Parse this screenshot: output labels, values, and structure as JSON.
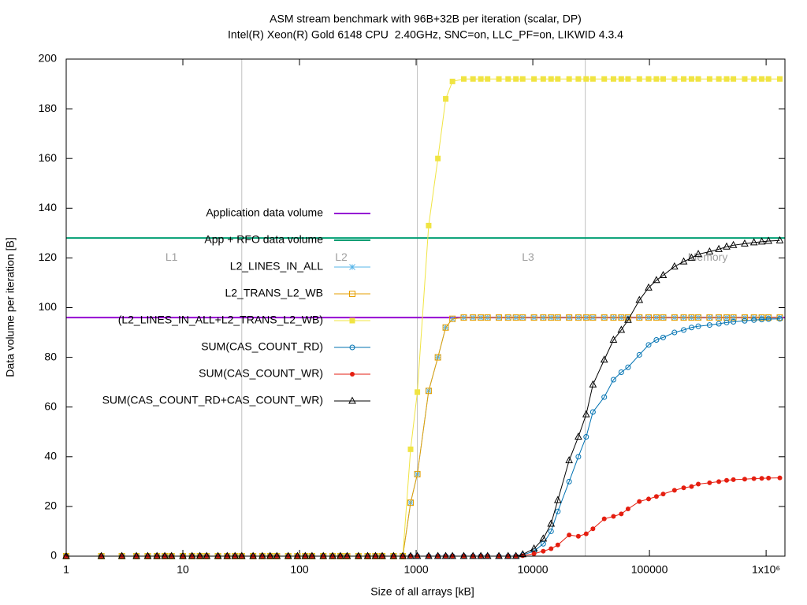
{
  "chart_data": {
    "type": "line",
    "title": "ASM stream benchmark with 96B+32B per iteration (scalar, DP)",
    "subtitle": "Intel(R) Xeon(R) Gold 6148 CPU  2.40GHz, SNC=on, LLC_PF=on, LIKWID 4.3.4",
    "xlabel": "Size of all arrays [kB]",
    "ylabel": "Data volume per iteration [B]",
    "log_x": true,
    "xlim": [
      1,
      1450000
    ],
    "ylim": [
      0,
      200
    ],
    "xticks": [
      1,
      10,
      100,
      1000,
      10000,
      100000,
      {
        "value": 1000000,
        "label": "1x10⁶"
      }
    ],
    "yticks": [
      0,
      20,
      40,
      60,
      80,
      100,
      120,
      140,
      160,
      180,
      200
    ],
    "cache_boundaries": [
      32,
      1024,
      28160
    ],
    "annotations": [
      {
        "text": "L1",
        "x": 8,
        "y": 120
      },
      {
        "text": "L2",
        "x": 228,
        "y": 120
      },
      {
        "text": "L3",
        "x": 9100,
        "y": 120
      },
      {
        "text": "Memory",
        "x": 316000,
        "y": 120
      }
    ],
    "reference_lines": [
      {
        "name": "Application data volume",
        "color": "#9400d3",
        "value": 96
      },
      {
        "name": "App + RFO data volume",
        "color": "#009e73",
        "value": 128
      }
    ],
    "x": [
      1,
      2,
      3,
      4,
      5,
      6,
      7,
      8,
      10,
      12,
      14,
      16,
      20,
      24,
      28,
      32,
      40,
      48,
      56,
      64,
      80,
      96,
      112,
      128,
      160,
      192,
      224,
      256,
      320,
      384,
      448,
      512,
      640,
      768,
      896,
      1024,
      1280,
      1536,
      1792,
      2048,
      2560,
      3072,
      3584,
      4096,
      5120,
      6144,
      7168,
      8192,
      10240,
      12288,
      14336,
      16384,
      20480,
      24576,
      28672,
      32768,
      40960,
      49152,
      57344,
      65536,
      81920,
      98304,
      114688,
      131072,
      163840,
      196608,
      229376,
      262144,
      327680,
      393216,
      458752,
      524288,
      655360,
      786432,
      917504,
      1048576,
      1310720
    ],
    "series": [
      {
        "name": "L2_LINES_IN_ALL",
        "color": "#56b4e9",
        "marker": "asterisk",
        "values": [
          0,
          0,
          0,
          0,
          0,
          0,
          0,
          0,
          0,
          0,
          0,
          0,
          0,
          0,
          0,
          0,
          0,
          0,
          0,
          0,
          0,
          0,
          0,
          0,
          0,
          0,
          0,
          0,
          0,
          0,
          0,
          0,
          0,
          0,
          21.5,
          33,
          66.5,
          80,
          92,
          95.5,
          96,
          96,
          96,
          96,
          96,
          96,
          96,
          96,
          96,
          96,
          96,
          96,
          96,
          96,
          96,
          96,
          96,
          96,
          96,
          96,
          96,
          96,
          96,
          96,
          96,
          96,
          96,
          96,
          96,
          96,
          96,
          96,
          96,
          96,
          96,
          96,
          96
        ]
      },
      {
        "name": "L2_TRANS_L2_WB",
        "color": "#e69f00",
        "marker": "square-open",
        "values": [
          0,
          0,
          0,
          0,
          0,
          0,
          0,
          0,
          0,
          0,
          0,
          0,
          0,
          0,
          0,
          0,
          0,
          0,
          0,
          0,
          0,
          0,
          0,
          0,
          0,
          0,
          0,
          0,
          0,
          0,
          0,
          0,
          0,
          0,
          21.5,
          33,
          66.5,
          80,
          92,
          95.5,
          96,
          96,
          96,
          96,
          96,
          96,
          96,
          96,
          96,
          96,
          96,
          96,
          96,
          96,
          96,
          96,
          96,
          96,
          96,
          96,
          96,
          96,
          96,
          96,
          96,
          96,
          96,
          96,
          96,
          96,
          96,
          96,
          96,
          96,
          96,
          96,
          96
        ]
      },
      {
        "name": "(L2_LINES_IN_ALL+L2_TRANS_L2_WB)",
        "color": "#f0e442",
        "marker": "square",
        "values": [
          0,
          0,
          0,
          0,
          0,
          0,
          0,
          0,
          0,
          0,
          0,
          0,
          0,
          0,
          0,
          0,
          0,
          0,
          0,
          0,
          0,
          0,
          0,
          0,
          0,
          0,
          0,
          0,
          0,
          0,
          0,
          0,
          0,
          0,
          43,
          66,
          133,
          160,
          184,
          191,
          192,
          192,
          192,
          192,
          192,
          192,
          192,
          192,
          192,
          192,
          192,
          192,
          192,
          192,
          192,
          192,
          192,
          192,
          192,
          192,
          192,
          192,
          192,
          192,
          192,
          192,
          192,
          192,
          192,
          192,
          192,
          192,
          192,
          192,
          192,
          192,
          192
        ]
      },
      {
        "name": "SUM(CAS_COUNT_RD)",
        "color": "#0072b2",
        "marker": "circle-open",
        "values": [
          0,
          0,
          0,
          0,
          0,
          0,
          0,
          0,
          0,
          0,
          0,
          0,
          0,
          0,
          0,
          0,
          0,
          0,
          0,
          0,
          0,
          0,
          0,
          0,
          0,
          0,
          0,
          0,
          0,
          0,
          0,
          0,
          0,
          0,
          0,
          0,
          0,
          0,
          0,
          0,
          0,
          0,
          0,
          0,
          0,
          0,
          0,
          0.5,
          2,
          5,
          10,
          18,
          30,
          40,
          48,
          58,
          64,
          71,
          74,
          76,
          81,
          85,
          87,
          88,
          90,
          91,
          92,
          92.5,
          93,
          93.5,
          94,
          94.3,
          94.7,
          95,
          95.2,
          95.4,
          95.5
        ]
      },
      {
        "name": "SUM(CAS_COUNT_WR)",
        "color": "#e51e10",
        "marker": "circle",
        "values": [
          0,
          0,
          0,
          0,
          0,
          0,
          0,
          0,
          0,
          0,
          0,
          0,
          0,
          0,
          0,
          0,
          0,
          0,
          0,
          0,
          0,
          0,
          0,
          0,
          0,
          0,
          0,
          0,
          0,
          0,
          0,
          0,
          0,
          0,
          0,
          0,
          0,
          0,
          0,
          0,
          0,
          0,
          0,
          0,
          0,
          0,
          0,
          0.2,
          1,
          2,
          3,
          4.5,
          8.5,
          8,
          9,
          11,
          15,
          16,
          17,
          19,
          22,
          23,
          24,
          25,
          26.5,
          27.5,
          28,
          29,
          29.5,
          30,
          30.5,
          30.8,
          31,
          31.2,
          31.3,
          31.4,
          31.5
        ]
      },
      {
        "name": "SUM(CAS_COUNT_RD+CAS_COUNT_WR)",
        "color": "#000000",
        "marker": "triangle-open",
        "values": [
          0,
          0,
          0,
          0,
          0,
          0,
          0,
          0,
          0,
          0,
          0,
          0,
          0,
          0,
          0,
          0,
          0,
          0,
          0,
          0,
          0,
          0,
          0,
          0,
          0,
          0,
          0,
          0,
          0,
          0,
          0,
          0,
          0,
          0,
          0,
          0,
          0,
          0,
          0,
          0,
          0,
          0,
          0,
          0,
          0,
          0,
          0,
          0.7,
          3,
          7,
          13,
          22.5,
          38.5,
          48,
          57,
          69,
          79,
          87,
          91,
          95,
          103,
          108,
          111,
          113,
          116.5,
          118.5,
          120,
          121.5,
          122.5,
          123.5,
          124.5,
          125.1,
          125.7,
          126.2,
          126.5,
          126.8,
          127
        ]
      }
    ]
  }
}
